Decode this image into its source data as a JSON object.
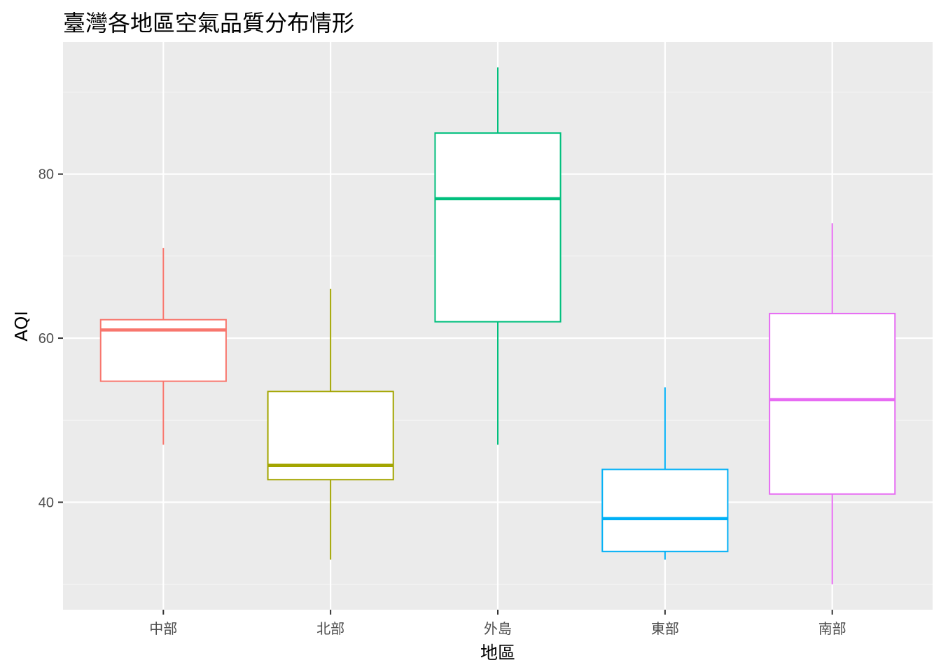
{
  "chart_data": {
    "type": "box",
    "title": "臺灣各地區空氣品質分布情形",
    "xlabel": "地區",
    "ylabel": "AQI",
    "ylim": [
      26.9,
      96.1
    ],
    "yticks": [
      40,
      60,
      80
    ],
    "yminor": [
      30,
      50,
      70,
      90
    ],
    "grid": true,
    "legend": "none",
    "categories": [
      "中部",
      "北部",
      "外島",
      "東部",
      "南部"
    ],
    "boxes": [
      {
        "category": "中部",
        "min": 47,
        "q1": 54.75,
        "median": 61,
        "q3": 62.25,
        "max": 71,
        "color": "#F8766D"
      },
      {
        "category": "北部",
        "min": 33,
        "q1": 42.75,
        "median": 44.5,
        "q3": 53.5,
        "max": 66,
        "color": "#A3A500"
      },
      {
        "category": "外島",
        "min": 47,
        "q1": 62,
        "median": 77,
        "q3": 85,
        "max": 93,
        "color": "#00BF7D"
      },
      {
        "category": "東部",
        "min": 33,
        "q1": 34,
        "median": 38,
        "q3": 44,
        "max": 54,
        "color": "#00B0F6"
      },
      {
        "category": "南部",
        "min": 30,
        "q1": 41,
        "median": 52.5,
        "q3": 63,
        "max": 74,
        "color": "#E76BF3"
      }
    ]
  },
  "colors": {
    "panel_background": "#EBEBEB",
    "grid_major": "#FFFFFF",
    "grid_minor": "#F5F5F5",
    "tick_label": "#4D4D4D",
    "tick_mark": "#333333"
  }
}
